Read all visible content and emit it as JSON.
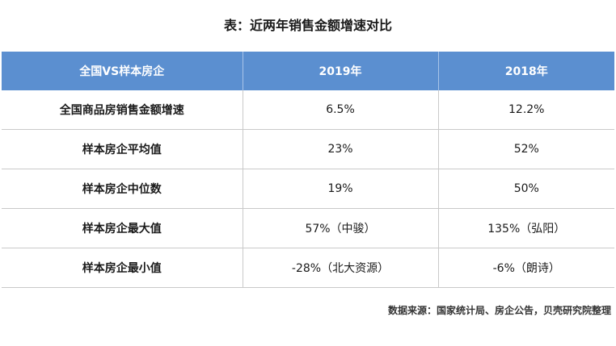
{
  "title": "表：近两年销售金额增速对比",
  "table": {
    "headers": [
      "全国VS样本房企",
      "2019年",
      "2018年"
    ],
    "rows": [
      [
        "全国商品房销售金额增速",
        "6.5%",
        "12.2%"
      ],
      [
        "样本房企平均值",
        "23%",
        "52%"
      ],
      [
        "样本房企中位数",
        "19%",
        "50%"
      ],
      [
        "样本房企最大值",
        "57%（中骏）",
        "135%（弘阳）"
      ],
      [
        "样本房企最小值",
        "-28%（北大资源）",
        "-6%（朗诗）"
      ]
    ]
  },
  "source": "数据来源：国家统计局、房企公告，贝壳研究院整理",
  "colors": {
    "header_bg": "#5b8fd0",
    "header_text": "#ffffff",
    "grid": "#c9c9c9"
  }
}
